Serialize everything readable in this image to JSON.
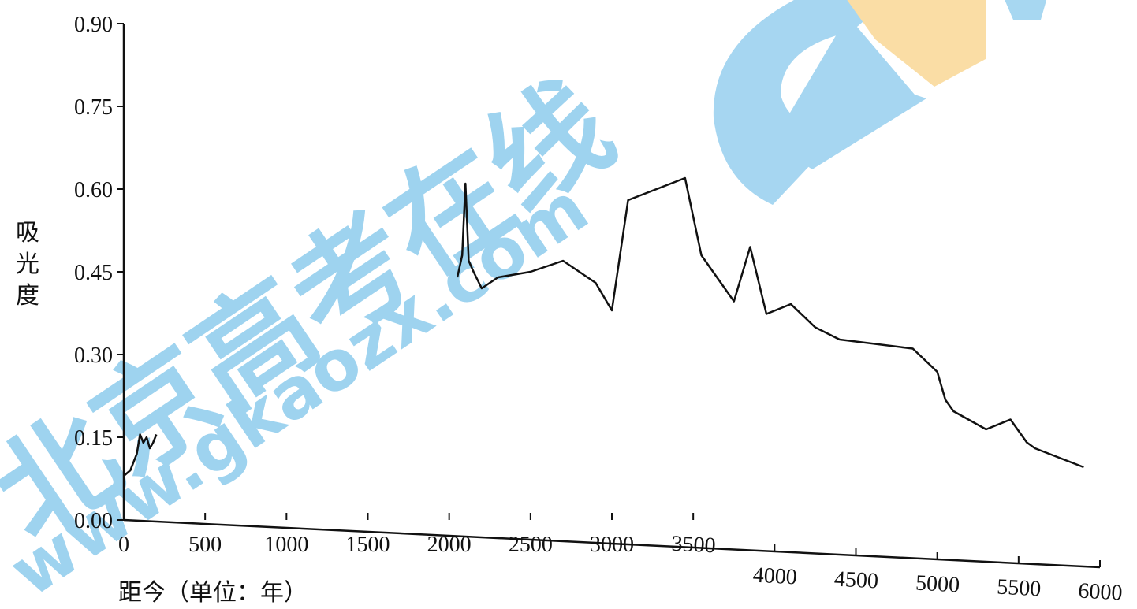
{
  "chart_data": {
    "type": "line",
    "title": "",
    "xlabel": "距今（单位：年）",
    "ylabel": "吸光度",
    "xlim": [
      0,
      6000
    ],
    "ylim": [
      0,
      0.9
    ],
    "x_ticks": [
      "0",
      "500",
      "1000",
      "1500",
      "2000",
      "2500",
      "3000",
      "3500",
      "4000",
      "4500",
      "5000",
      "5500",
      "6000"
    ],
    "y_ticks": [
      "0.00",
      "0.15",
      "0.30",
      "0.45",
      "0.60",
      "0.75",
      "0.90"
    ],
    "grid": false,
    "series": [
      {
        "x": [
          0,
          40,
          80,
          100,
          120,
          140,
          160,
          180,
          200,
          2050,
          2080,
          2100,
          2120,
          2150,
          2200,
          2300,
          2500,
          2700,
          2900,
          3000,
          3100,
          3450,
          3550,
          3750,
          3850,
          3950,
          4100,
          4250,
          4400,
          4850,
          5000,
          5050,
          5100,
          5300,
          5450,
          5550,
          5600,
          5900
        ],
        "y": [
          0.08,
          0.09,
          0.12,
          0.155,
          0.14,
          0.15,
          0.13,
          0.14,
          0.155,
          0.44,
          0.48,
          0.61,
          0.47,
          0.45,
          0.42,
          0.44,
          0.45,
          0.47,
          0.43,
          0.38,
          0.58,
          0.62,
          0.48,
          0.45,
          0.55,
          0.43,
          0.45,
          0.41,
          0.39,
          0.38,
          0.34,
          0.29,
          0.27,
          0.24,
          0.26,
          0.22,
          0.21,
          0.18
        ]
      }
    ]
  },
  "watermark": {
    "text_cn": "北京高考在线",
    "text_url": "www.gkaozx.com",
    "colors": {
      "blue": "#5fb6e6",
      "orange": "#f6c35c"
    }
  }
}
